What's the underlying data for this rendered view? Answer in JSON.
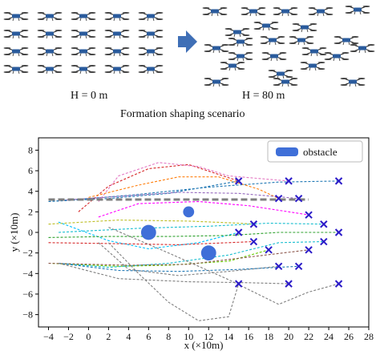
{
  "captions": {
    "left": "H = 0 m",
    "right": "H = 80 m",
    "scenario": "Formation shaping scenario"
  },
  "colors": {
    "drone_body": "#2a5b9c",
    "arrow": "#3f6fb6",
    "obstacle": "#3f6fd8",
    "target": "#2b1bc8",
    "path_palette": [
      "#1f77b4",
      "#2ca02c",
      "#d62728",
      "#9467bd",
      "#e377c2",
      "#bcbd22",
      "#17becf",
      "#ff7f0e",
      "#7f7f7f",
      "#8c564b",
      "#ff00ff",
      "#00c0ff",
      "#66cc00"
    ]
  },
  "drone_icon": "quadcopter-icon",
  "arrow_icon": "right-arrow-icon",
  "chart_data": {
    "type": "scatter",
    "title": "",
    "xlabel": "x (×10m)",
    "ylabel": "y (×10m)",
    "xlim": [
      -5,
      28
    ],
    "ylim": [
      -9.2,
      9.2
    ],
    "xticks": [
      -4,
      -2,
      0,
      2,
      4,
      6,
      8,
      10,
      12,
      14,
      16,
      18,
      20,
      22,
      24,
      26,
      28
    ],
    "yticks": [
      8,
      6,
      4,
      2,
      0,
      -2,
      -4,
      -6,
      -8
    ],
    "grid": false,
    "legend": {
      "location": "top-right",
      "entries": [
        "obstacle"
      ]
    },
    "obstacles": [
      {
        "x": 10,
        "y": 2,
        "r": 0.55
      },
      {
        "x": 6,
        "y": 0,
        "r": 0.75
      },
      {
        "x": 12,
        "y": -2,
        "r": 0.75
      }
    ],
    "targets": [
      [
        15,
        5
      ],
      [
        20,
        5
      ],
      [
        25,
        5
      ],
      [
        19,
        3.3
      ],
      [
        21,
        3.3
      ],
      [
        22,
        1.7
      ],
      [
        16.5,
        0.8
      ],
      [
        23.5,
        0.8
      ],
      [
        15,
        0
      ],
      [
        25,
        0
      ],
      [
        16.5,
        -0.9
      ],
      [
        23.5,
        -0.9
      ],
      [
        18,
        -1.7
      ],
      [
        22,
        -1.7
      ],
      [
        19,
        -3.3
      ],
      [
        21,
        -3.3
      ],
      [
        15,
        -5
      ],
      [
        20,
        -5
      ],
      [
        25,
        -5
      ]
    ],
    "reference_line": {
      "points": [
        [
          -4,
          3.2
        ],
        [
          22,
          3.2
        ]
      ],
      "color": "#808080",
      "style": "dashed-thick"
    },
    "series": [
      {
        "color": "#1f77b4",
        "points": [
          [
            -4,
            3
          ],
          [
            2,
            3.3
          ],
          [
            8,
            3.8
          ],
          [
            15,
            5
          ]
        ]
      },
      {
        "color": "#1f77b4",
        "points": [
          [
            -4,
            3
          ],
          [
            4,
            3.6
          ],
          [
            12,
            4.4
          ],
          [
            19,
            4.9
          ],
          [
            25,
            5
          ]
        ]
      },
      {
        "color": "#d62728",
        "points": [
          [
            -1,
            2
          ],
          [
            2,
            4.5
          ],
          [
            6,
            6.2
          ],
          [
            10,
            6.6
          ],
          [
            15,
            5
          ]
        ]
      },
      {
        "color": "#e377c2",
        "points": [
          [
            1,
            3
          ],
          [
            3,
            5.5
          ],
          [
            7,
            6.8
          ],
          [
            11,
            6.4
          ],
          [
            14,
            5.5
          ],
          [
            20,
            5
          ]
        ]
      },
      {
        "color": "#ff7f0e",
        "points": [
          [
            0,
            3.4
          ],
          [
            5,
            4.6
          ],
          [
            9,
            5.4
          ],
          [
            13,
            5.4
          ],
          [
            17,
            4.2
          ],
          [
            19,
            3.3
          ]
        ]
      },
      {
        "color": "#9467bd",
        "points": [
          [
            -3,
            3.1
          ],
          [
            3,
            3.5
          ],
          [
            9,
            3.9
          ],
          [
            15,
            3.8
          ],
          [
            21,
            3.3
          ]
        ]
      },
      {
        "color": "#ff00ff",
        "points": [
          [
            1,
            1.5
          ],
          [
            5,
            2.8
          ],
          [
            11,
            3
          ],
          [
            16,
            2.6
          ],
          [
            20,
            2
          ],
          [
            22,
            1.7
          ]
        ]
      },
      {
        "color": "#bcbd22",
        "points": [
          [
            -4,
            0.8
          ],
          [
            3,
            1.2
          ],
          [
            10,
            1.1
          ],
          [
            15,
            0.9
          ],
          [
            16.5,
            0.8
          ]
        ]
      },
      {
        "color": "#17becf",
        "points": [
          [
            -3,
            0
          ],
          [
            5,
            0.4
          ],
          [
            12,
            0.6
          ],
          [
            18,
            0.9
          ],
          [
            23.5,
            0.8
          ]
        ]
      },
      {
        "color": "#00c0ff",
        "points": [
          [
            -3,
            1
          ],
          [
            2,
            -0.8
          ],
          [
            6,
            -1.6
          ],
          [
            11,
            -1
          ],
          [
            15,
            0
          ]
        ]
      },
      {
        "color": "#2ca02c",
        "points": [
          [
            -4,
            -0.5
          ],
          [
            2,
            -0.4
          ],
          [
            8,
            -0.4
          ],
          [
            14,
            -0.3
          ],
          [
            19,
            0
          ],
          [
            25,
            0
          ]
        ]
      },
      {
        "color": "#d62728",
        "points": [
          [
            -4,
            -1
          ],
          [
            3,
            -1.1
          ],
          [
            9,
            -1.2
          ],
          [
            14,
            -1
          ],
          [
            16.5,
            -0.9
          ]
        ]
      },
      {
        "color": "#66cc00",
        "points": [
          [
            -4,
            -3
          ],
          [
            3,
            -3.3
          ],
          [
            8,
            -3.2
          ],
          [
            14,
            -2.8
          ],
          [
            18,
            -1.7
          ]
        ]
      },
      {
        "color": "#17becf",
        "points": [
          [
            -3,
            -3
          ],
          [
            2,
            -3.4
          ],
          [
            8,
            -3
          ],
          [
            14,
            -2.2
          ],
          [
            19,
            -1
          ],
          [
            23.5,
            -0.9
          ]
        ]
      },
      {
        "color": "#8c564b",
        "points": [
          [
            -4,
            -3
          ],
          [
            4,
            -3.2
          ],
          [
            10,
            -3.1
          ],
          [
            16,
            -2.4
          ],
          [
            22,
            -1.7
          ]
        ]
      },
      {
        "color": "#7f7f7f",
        "points": [
          [
            1,
            -1
          ],
          [
            4,
            -3.6
          ],
          [
            9,
            -4.2
          ],
          [
            14,
            -3.8
          ],
          [
            19,
            -3.3
          ]
        ]
      },
      {
        "color": "#1f77b4",
        "points": [
          [
            -3,
            -3
          ],
          [
            3,
            -3.7
          ],
          [
            9,
            -3.8
          ],
          [
            15,
            -3.6
          ],
          [
            21,
            -3.3
          ]
        ]
      },
      {
        "color": "#7f7f7f",
        "points": [
          [
            2,
            -1
          ],
          [
            5,
            -4
          ],
          [
            8,
            -6.8
          ],
          [
            11,
            -8.6
          ],
          [
            14,
            -8.2
          ],
          [
            15,
            -5
          ]
        ]
      },
      {
        "color": "#7f7f7f",
        "points": [
          [
            -3,
            -3
          ],
          [
            3,
            -4.5
          ],
          [
            10,
            -4.8
          ],
          [
            16,
            -4.9
          ],
          [
            20,
            -5
          ]
        ]
      },
      {
        "color": "#7f7f7f",
        "points": [
          [
            2,
            0.5
          ],
          [
            8,
            -2
          ],
          [
            14,
            -4.6
          ],
          [
            19,
            -7
          ],
          [
            22,
            -5.8
          ],
          [
            25,
            -5
          ]
        ]
      }
    ]
  }
}
